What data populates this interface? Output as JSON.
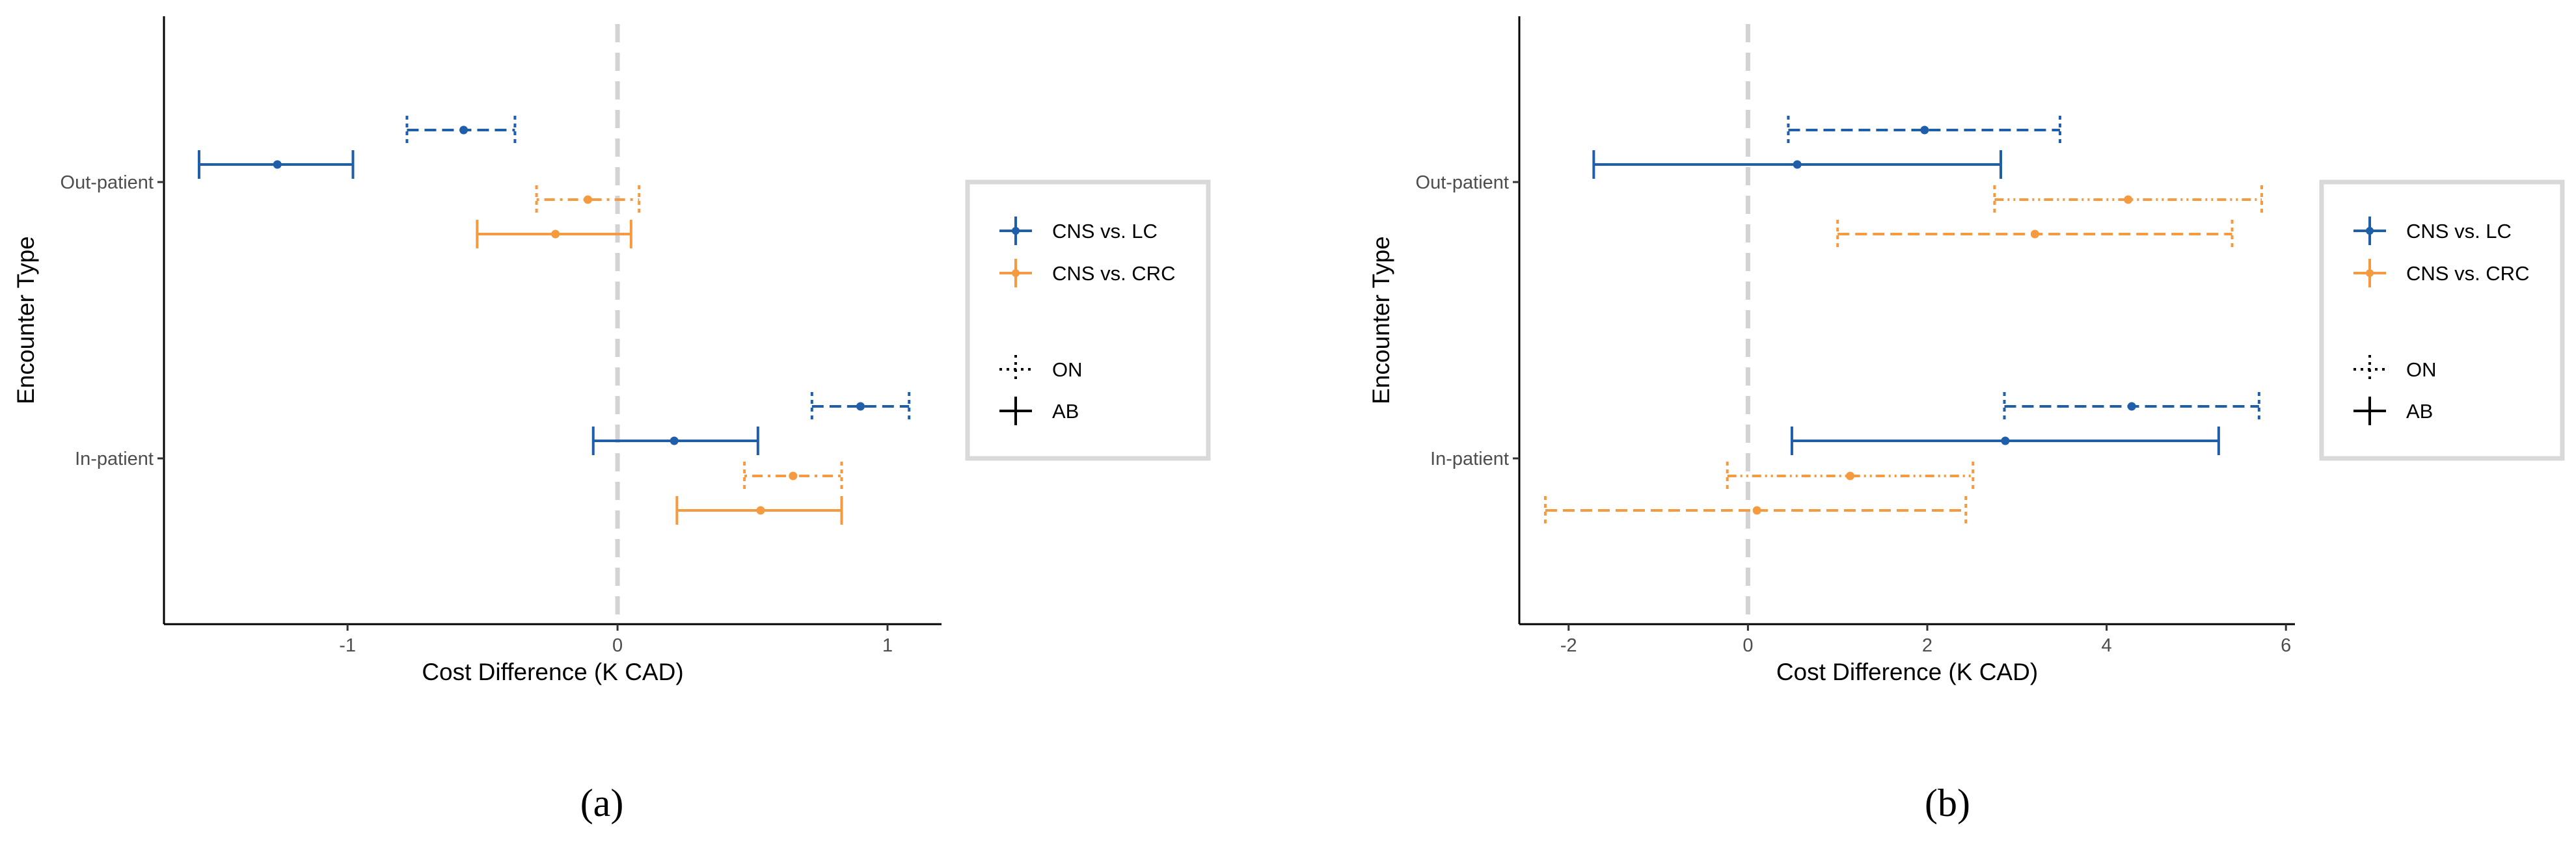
{
  "colors": {
    "lc": "#1f5ea8",
    "crc": "#f59a3f",
    "zero_line": "#d3d3d3",
    "legend_frame": "#d9d9d9",
    "axis": "#000000"
  },
  "legend": {
    "items": [
      {
        "label": "CNS vs. LC",
        "color_key": "lc",
        "style": "solid"
      },
      {
        "label": "CNS vs. CRC",
        "color_key": "crc",
        "style": "solid"
      },
      {
        "label": "ON",
        "color_key": "axis",
        "style": "dotted"
      },
      {
        "label": "AB",
        "color_key": "axis",
        "style": "solid"
      }
    ]
  },
  "chart_data": [
    {
      "panel_label": "(a)",
      "type": "forest",
      "xlabel": "Cost Difference (K CAD)",
      "ylabel": "Encounter Type",
      "categories": [
        "Out-patient",
        "In-patient"
      ],
      "xlim": [
        -1.68,
        1.2
      ],
      "xticks": [
        -1,
        0,
        1
      ],
      "reference_line": 0,
      "series": [
        {
          "name": "CNS vs. LC",
          "variant": "ON",
          "color_key": "lc",
          "dash": "dashed",
          "points": [
            {
              "category": "Out-patient",
              "estimate": -0.57,
              "low": -0.78,
              "high": -0.38
            },
            {
              "category": "In-patient",
              "estimate": 0.9,
              "low": 0.72,
              "high": 1.08
            }
          ]
        },
        {
          "name": "CNS vs. LC",
          "variant": "AB",
          "color_key": "lc",
          "dash": "solid",
          "points": [
            {
              "category": "Out-patient",
              "estimate": -1.26,
              "low": -1.55,
              "high": -0.98
            },
            {
              "category": "In-patient",
              "estimate": 0.21,
              "low": -0.09,
              "high": 0.52
            }
          ]
        },
        {
          "name": "CNS vs. CRC",
          "variant": "ON",
          "color_key": "crc",
          "dash": "dotdash",
          "points": [
            {
              "category": "Out-patient",
              "estimate": -0.11,
              "low": -0.3,
              "high": 0.08
            },
            {
              "category": "In-patient",
              "estimate": 0.65,
              "low": 0.47,
              "high": 0.83
            }
          ]
        },
        {
          "name": "CNS vs. CRC",
          "variant": "AB",
          "color_key": "crc",
          "dash": "solid",
          "points": [
            {
              "category": "Out-patient",
              "estimate": -0.23,
              "low": -0.52,
              "high": 0.05
            },
            {
              "category": "In-patient",
              "estimate": 0.53,
              "low": 0.22,
              "high": 0.83
            }
          ]
        }
      ]
    },
    {
      "panel_label": "(b)",
      "type": "forest",
      "xlabel": "Cost Difference (K CAD)",
      "ylabel": "Encounter Type",
      "categories": [
        "Out-patient",
        "In-patient"
      ],
      "xlim": [
        -2.55,
        6.1
      ],
      "xticks": [
        -2,
        0,
        2,
        4,
        6
      ],
      "reference_line": 0,
      "series": [
        {
          "name": "CNS vs. LC",
          "variant": "ON",
          "color_key": "lc",
          "dash": "dashed",
          "points": [
            {
              "category": "Out-patient",
              "estimate": 1.97,
              "low": 0.45,
              "high": 3.48
            },
            {
              "category": "In-patient",
              "estimate": 4.28,
              "low": 2.86,
              "high": 5.7
            }
          ]
        },
        {
          "name": "CNS vs. LC",
          "variant": "AB",
          "color_key": "lc",
          "dash": "solid",
          "points": [
            {
              "category": "Out-patient",
              "estimate": 0.55,
              "low": -1.72,
              "high": 2.82
            },
            {
              "category": "In-patient",
              "estimate": 2.87,
              "low": 0.49,
              "high": 5.25
            }
          ]
        },
        {
          "name": "CNS vs. CRC",
          "variant": "ON",
          "color_key": "crc",
          "dash": "dashdotdot",
          "points": [
            {
              "category": "Out-patient",
              "estimate": 4.24,
              "low": 2.75,
              "high": 5.73
            },
            {
              "category": "In-patient",
              "estimate": 1.14,
              "low": -0.23,
              "high": 2.51
            }
          ]
        },
        {
          "name": "CNS vs. CRC",
          "variant": "AB",
          "color_key": "crc",
          "dash": "dashed",
          "points": [
            {
              "category": "Out-patient",
              "estimate": 3.2,
              "low": 1.0,
              "high": 5.4
            },
            {
              "category": "In-patient",
              "estimate": 0.1,
              "low": -2.26,
              "high": 2.43
            }
          ]
        }
      ]
    }
  ]
}
